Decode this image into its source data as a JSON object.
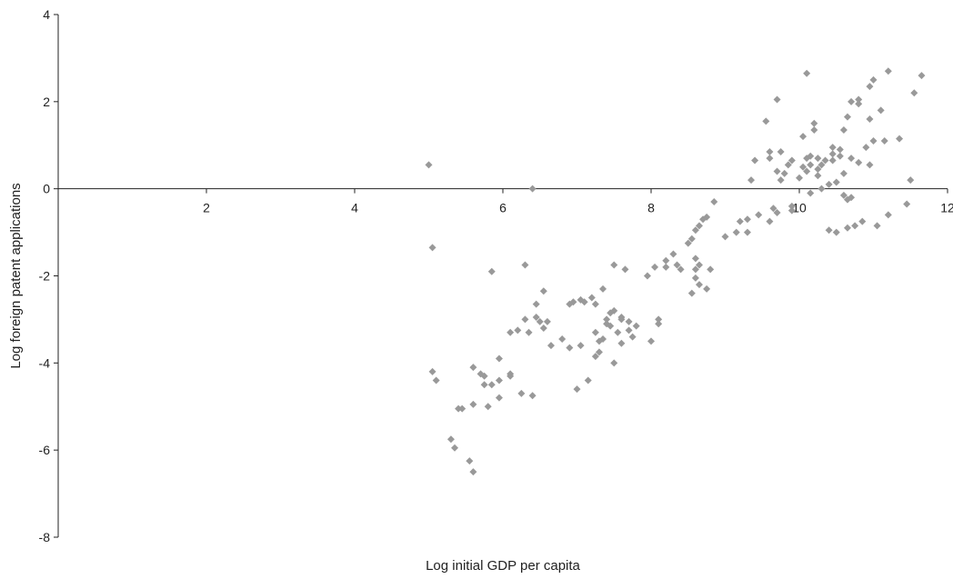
{
  "chart_data": {
    "type": "scatter",
    "title": "",
    "xlabel": "Log initial GDP per capita",
    "ylabel": "Log foreign patent applications",
    "xlim": [
      0,
      12
    ],
    "ylim": [
      -8,
      4
    ],
    "x_ticks": [
      2,
      4,
      6,
      8,
      10,
      12
    ],
    "y_ticks": [
      -8,
      -6,
      -4,
      -2,
      0,
      2,
      4
    ],
    "grid": false,
    "legend": "none",
    "marker": "diamond",
    "marker_color": "#999999",
    "axis_color": "#222222",
    "points": [
      [
        5.0,
        0.55
      ],
      [
        5.05,
        -1.35
      ],
      [
        6.4,
        0.0
      ],
      [
        6.3,
        -1.75
      ],
      [
        5.85,
        -1.9
      ],
      [
        5.05,
        -4.2
      ],
      [
        5.1,
        -4.4
      ],
      [
        5.3,
        -5.75
      ],
      [
        5.35,
        -5.95
      ],
      [
        5.4,
        -5.05
      ],
      [
        5.45,
        -5.05
      ],
      [
        5.55,
        -6.25
      ],
      [
        5.6,
        -6.5
      ],
      [
        5.6,
        -4.95
      ],
      [
        5.6,
        -4.1
      ],
      [
        5.7,
        -4.25
      ],
      [
        5.75,
        -4.3
      ],
      [
        5.75,
        -4.5
      ],
      [
        5.8,
        -5.0
      ],
      [
        5.85,
        -4.5
      ],
      [
        5.95,
        -3.9
      ],
      [
        5.95,
        -4.4
      ],
      [
        5.95,
        -4.8
      ],
      [
        6.1,
        -4.25
      ],
      [
        6.1,
        -4.3
      ],
      [
        6.1,
        -3.3
      ],
      [
        6.2,
        -3.25
      ],
      [
        6.25,
        -4.7
      ],
      [
        6.3,
        -3.0
      ],
      [
        6.35,
        -3.3
      ],
      [
        6.4,
        -4.75
      ],
      [
        6.45,
        -2.65
      ],
      [
        6.45,
        -2.95
      ],
      [
        6.5,
        -3.05
      ],
      [
        6.55,
        -2.35
      ],
      [
        6.55,
        -3.2
      ],
      [
        6.6,
        -3.05
      ],
      [
        6.65,
        -3.6
      ],
      [
        6.8,
        -3.45
      ],
      [
        6.9,
        -2.65
      ],
      [
        6.9,
        -3.65
      ],
      [
        6.95,
        -2.6
      ],
      [
        7.0,
        -4.6
      ],
      [
        7.05,
        -2.55
      ],
      [
        7.05,
        -3.6
      ],
      [
        7.1,
        -2.6
      ],
      [
        7.15,
        -4.4
      ],
      [
        7.2,
        -2.5
      ],
      [
        7.25,
        -2.65
      ],
      [
        7.25,
        -3.3
      ],
      [
        7.25,
        -3.85
      ],
      [
        7.3,
        -3.5
      ],
      [
        7.3,
        -3.75
      ],
      [
        7.35,
        -2.3
      ],
      [
        7.35,
        -3.45
      ],
      [
        7.4,
        -3.0
      ],
      [
        7.4,
        -3.1
      ],
      [
        7.45,
        -2.85
      ],
      [
        7.45,
        -3.15
      ],
      [
        7.5,
        -1.75
      ],
      [
        7.5,
        -2.8
      ],
      [
        7.5,
        -4.0
      ],
      [
        7.55,
        -3.3
      ],
      [
        7.6,
        -2.95
      ],
      [
        7.6,
        -3.0
      ],
      [
        7.6,
        -3.55
      ],
      [
        7.65,
        -1.85
      ],
      [
        7.7,
        -3.05
      ],
      [
        7.7,
        -3.25
      ],
      [
        7.75,
        -3.4
      ],
      [
        7.8,
        -3.15
      ],
      [
        7.95,
        -2.0
      ],
      [
        8.0,
        -3.5
      ],
      [
        8.05,
        -1.8
      ],
      [
        8.1,
        -3.0
      ],
      [
        8.1,
        -3.1
      ],
      [
        8.2,
        -1.65
      ],
      [
        8.2,
        -1.8
      ],
      [
        8.3,
        -1.5
      ],
      [
        8.35,
        -1.75
      ],
      [
        8.4,
        -1.85
      ],
      [
        8.5,
        -1.25
      ],
      [
        8.55,
        -2.4
      ],
      [
        8.55,
        -1.15
      ],
      [
        8.6,
        -0.95
      ],
      [
        8.6,
        -1.6
      ],
      [
        8.6,
        -2.05
      ],
      [
        8.65,
        -0.85
      ],
      [
        8.6,
        -1.85
      ],
      [
        8.65,
        -2.2
      ],
      [
        8.65,
        -1.75
      ],
      [
        8.7,
        -0.7
      ],
      [
        8.75,
        -0.65
      ],
      [
        8.75,
        -2.3
      ],
      [
        8.8,
        -1.85
      ],
      [
        8.85,
        -0.3
      ],
      [
        9.0,
        -1.1
      ],
      [
        9.15,
        -1.0
      ],
      [
        9.2,
        -0.75
      ],
      [
        9.3,
        -0.7
      ],
      [
        9.3,
        -1.0
      ],
      [
        9.35,
        0.2
      ],
      [
        9.4,
        0.65
      ],
      [
        9.45,
        -0.6
      ],
      [
        9.55,
        1.55
      ],
      [
        9.6,
        -0.75
      ],
      [
        9.6,
        0.85
      ],
      [
        9.6,
        0.7
      ],
      [
        9.65,
        -0.45
      ],
      [
        9.7,
        -0.55
      ],
      [
        9.7,
        0.4
      ],
      [
        9.7,
        2.05
      ],
      [
        9.75,
        0.2
      ],
      [
        9.75,
        0.85
      ],
      [
        9.8,
        0.35
      ],
      [
        9.85,
        0.55
      ],
      [
        9.9,
        -0.5
      ],
      [
        9.9,
        -0.4
      ],
      [
        10.0,
        0.25
      ],
      [
        10.05,
        1.2
      ],
      [
        10.1,
        2.65
      ],
      [
        10.1,
        0.4
      ],
      [
        10.15,
        -0.1
      ],
      [
        10.15,
        0.55
      ],
      [
        10.15,
        0.75
      ],
      [
        10.2,
        1.5
      ],
      [
        10.2,
        1.35
      ],
      [
        10.25,
        0.3
      ],
      [
        10.25,
        0.7
      ],
      [
        10.3,
        0.0
      ],
      [
        10.3,
        0.55
      ],
      [
        10.35,
        0.65
      ],
      [
        10.4,
        0.1
      ],
      [
        10.45,
        0.65
      ],
      [
        10.45,
        0.95
      ],
      [
        10.45,
        0.8
      ],
      [
        10.5,
        0.15
      ],
      [
        10.5,
        -1.0
      ],
      [
        10.55,
        0.75
      ],
      [
        10.55,
        0.9
      ],
      [
        10.6,
        0.35
      ],
      [
        10.6,
        -0.15
      ],
      [
        10.6,
        1.35
      ],
      [
        10.65,
        -0.25
      ],
      [
        10.65,
        -0.9
      ],
      [
        10.65,
        1.65
      ],
      [
        10.7,
        2.0
      ],
      [
        10.7,
        0.7
      ],
      [
        10.75,
        -0.85
      ],
      [
        10.8,
        2.05
      ],
      [
        10.8,
        0.6
      ],
      [
        10.8,
        1.95
      ],
      [
        10.85,
        -0.75
      ],
      [
        10.9,
        0.95
      ],
      [
        10.95,
        2.35
      ],
      [
        10.95,
        0.55
      ],
      [
        10.95,
        1.6
      ],
      [
        11.0,
        2.5
      ],
      [
        11.0,
        1.1
      ],
      [
        11.05,
        -0.85
      ],
      [
        11.1,
        1.8
      ],
      [
        11.15,
        1.1
      ],
      [
        11.2,
        2.7
      ],
      [
        11.2,
        -0.6
      ],
      [
        11.35,
        1.15
      ],
      [
        11.5,
        0.2
      ],
      [
        11.45,
        -0.35
      ],
      [
        11.55,
        2.2
      ],
      [
        11.65,
        2.6
      ],
      [
        10.4,
        -0.95
      ],
      [
        10.1,
        0.7
      ],
      [
        10.25,
        0.45
      ],
      [
        9.9,
        0.65
      ],
      [
        10.7,
        -0.2
      ],
      [
        10.05,
        0.5
      ]
    ]
  }
}
